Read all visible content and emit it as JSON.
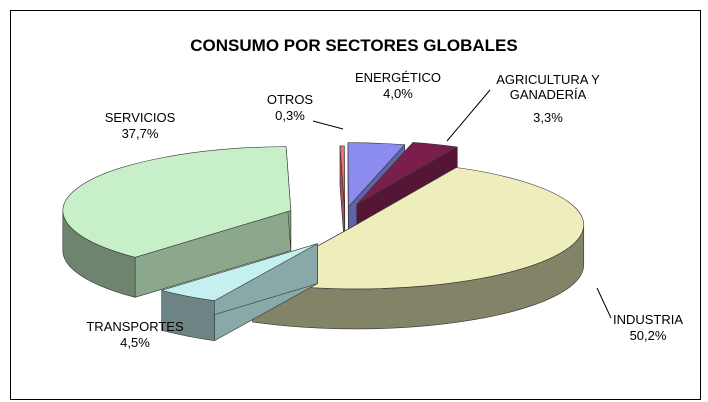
{
  "chart_data": {
    "type": "pie3d",
    "title": "CONSUMO POR SECTORES GLOBALES",
    "categories": [
      "OTROS",
      "ENERGÉTICO",
      "AGRICULTURA  Y GANADERÍA",
      "INDUSTRIA",
      "TRANSPORTES",
      "SERVICIOS"
    ],
    "values": [
      0.3,
      4.0,
      3.3,
      50.2,
      4.5,
      37.7
    ],
    "value_labels": [
      "0,3%",
      "4,0%",
      "3,3%",
      "50,2%",
      "4,5%",
      "37,7%"
    ],
    "colors": [
      "#f07070",
      "#8c8cf0",
      "#7a1f4c",
      "#eeeebc",
      "#c4f0f0",
      "#c8f0c8"
    ]
  }
}
